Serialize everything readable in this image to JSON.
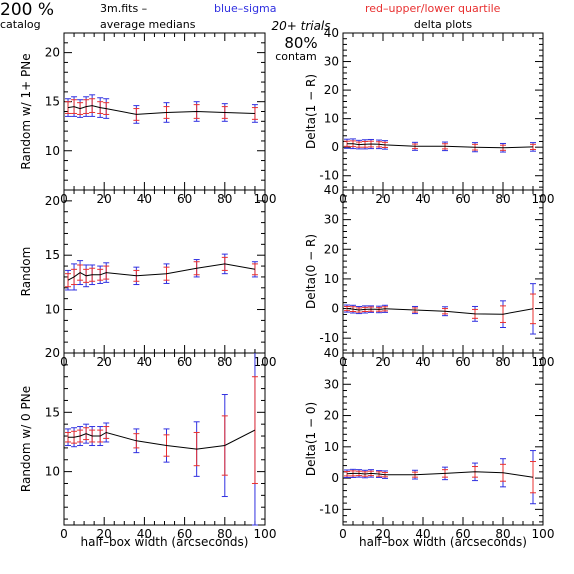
{
  "header": {
    "percent": "200 %",
    "catalog": "catalog",
    "fits": "3m.fits  –",
    "average_medians": "average medians",
    "blue_legend": "blue–sigma",
    "red_legend": "red–upper/lower quartile",
    "trials": "20+ trials",
    "contam_value": "80%",
    "contam_label": "contam",
    "delta_plots": "delta plots",
    "blue_color": "#3030e0",
    "red_color": "#e83030"
  },
  "chart_data": [
    {
      "type": "line",
      "id": "left-1",
      "ylabel": "Random w/ 1+ PNe",
      "xlabel": "",
      "xlim": [
        0,
        100
      ],
      "ylim": [
        6,
        22
      ],
      "xticks": [
        0,
        20,
        40,
        60,
        80,
        100
      ],
      "yticks": [
        10,
        15,
        20
      ],
      "x": [
        2,
        5,
        8,
        11,
        14,
        18,
        21,
        36,
        51,
        66,
        80,
        95
      ],
      "y": [
        14.4,
        14.5,
        14.3,
        14.5,
        14.6,
        14.4,
        14.3,
        13.7,
        13.9,
        14.0,
        13.9,
        13.8
      ],
      "sigma": [
        0.9,
        1.0,
        0.9,
        1.0,
        1.1,
        1.0,
        1.0,
        0.9,
        1.0,
        1.0,
        0.9,
        0.9
      ],
      "quartile": [
        0.6,
        0.7,
        0.6,
        0.7,
        0.7,
        0.6,
        0.6,
        0.6,
        0.6,
        0.7,
        0.6,
        0.6
      ]
    },
    {
      "type": "line",
      "id": "right-1",
      "ylabel": "Delta(1 − R)",
      "xlabel": "",
      "xlim": [
        0,
        100
      ],
      "ylim": [
        -15,
        40
      ],
      "xticks": [
        0,
        20,
        40,
        60,
        80,
        100
      ],
      "yticks": [
        -10,
        0,
        10,
        20,
        30,
        40
      ],
      "x": [
        2,
        5,
        8,
        11,
        14,
        18,
        21,
        36,
        51,
        66,
        80,
        95
      ],
      "y": [
        1.2,
        1.2,
        0.9,
        1.0,
        1.1,
        1.0,
        0.8,
        0.3,
        0.3,
        0.0,
        -0.2,
        0.1
      ],
      "sigma": [
        1.6,
        1.7,
        1.5,
        1.6,
        1.6,
        1.5,
        1.5,
        1.4,
        1.5,
        1.6,
        1.5,
        1.5
      ],
      "quartile": [
        0.9,
        1.0,
        0.9,
        1.0,
        1.0,
        0.9,
        0.9,
        0.8,
        0.9,
        1.0,
        0.9,
        0.9
      ]
    },
    {
      "type": "line",
      "id": "left-2",
      "ylabel": "Random",
      "xlabel": "",
      "xlim": [
        0,
        100
      ],
      "ylim": [
        6,
        21
      ],
      "xticks": [
        0,
        20,
        40,
        60,
        80,
        100
      ],
      "yticks": [
        10,
        15,
        20
      ],
      "x": [
        2,
        5,
        8,
        11,
        14,
        18,
        21,
        36,
        51,
        66,
        80,
        95
      ],
      "y": [
        12.7,
        13.0,
        13.4,
        13.1,
        13.2,
        13.2,
        13.4,
        13.1,
        13.3,
        13.8,
        14.2,
        13.7
      ],
      "sigma": [
        0.9,
        1.2,
        1.1,
        1.0,
        0.9,
        0.8,
        0.9,
        0.8,
        0.9,
        0.8,
        0.9,
        0.7
      ],
      "quartile": [
        0.6,
        0.7,
        0.7,
        0.6,
        0.6,
        0.5,
        0.6,
        0.5,
        0.6,
        0.6,
        0.6,
        0.5
      ]
    },
    {
      "type": "line",
      "id": "right-2",
      "ylabel": "Delta(0 − R)",
      "xlabel": "",
      "xlim": [
        0,
        100
      ],
      "ylim": [
        -15,
        40
      ],
      "xticks": [
        0,
        20,
        40,
        60,
        80,
        100
      ],
      "yticks": [
        -10,
        0,
        10,
        20,
        30,
        40
      ],
      "x": [
        2,
        5,
        8,
        11,
        14,
        18,
        21,
        36,
        51,
        66,
        80,
        95
      ],
      "y": [
        0.0,
        -0.2,
        -0.5,
        -0.3,
        -0.2,
        -0.3,
        -0.1,
        -0.5,
        -0.9,
        -1.8,
        -1.9,
        -0.1
      ],
      "sigma": [
        1.2,
        1.3,
        1.2,
        1.2,
        1.1,
        1.1,
        1.2,
        1.2,
        1.5,
        2.5,
        4.5,
        8.5
      ],
      "quartile": [
        0.7,
        0.8,
        0.7,
        0.7,
        0.7,
        0.6,
        0.7,
        0.7,
        0.9,
        1.5,
        2.8,
        5.0
      ]
    },
    {
      "type": "line",
      "id": "left-3",
      "ylabel": "Random w/ 0 PNe",
      "xlabel": "half–box width (arcseconds)",
      "xlim": [
        0,
        100
      ],
      "ylim": [
        5.5,
        20
      ],
      "xticks": [
        0,
        20,
        40,
        60,
        80,
        100
      ],
      "yticks": [
        10,
        15,
        20
      ],
      "x": [
        2,
        5,
        8,
        11,
        14,
        18,
        21,
        36,
        51,
        66,
        80,
        95
      ],
      "y": [
        12.9,
        12.9,
        13.0,
        13.2,
        13.0,
        13.0,
        13.3,
        12.6,
        12.2,
        11.9,
        12.2,
        13.5
      ],
      "sigma": [
        0.7,
        0.8,
        0.8,
        0.8,
        0.8,
        0.8,
        0.8,
        1.0,
        1.4,
        2.3,
        4.3,
        8.0
      ],
      "quartile": [
        0.4,
        0.5,
        0.5,
        0.5,
        0.5,
        0.5,
        0.5,
        0.6,
        0.9,
        1.4,
        2.5,
        4.5
      ]
    },
    {
      "type": "line",
      "id": "right-3",
      "ylabel": "Delta(1 − 0)",
      "xlabel": "half–box width (arcseconds)",
      "xlim": [
        0,
        100
      ],
      "ylim": [
        -15,
        40
      ],
      "xticks": [
        0,
        20,
        40,
        60,
        80,
        100
      ],
      "yticks": [
        -10,
        0,
        10,
        20,
        30,
        40
      ],
      "x": [
        2,
        5,
        8,
        11,
        14,
        18,
        21,
        36,
        51,
        66,
        80,
        95
      ],
      "y": [
        1.4,
        1.5,
        1.5,
        1.3,
        1.5,
        1.3,
        1.1,
        1.1,
        1.5,
        2.0,
        1.7,
        0.3
      ],
      "sigma": [
        1.2,
        1.3,
        1.2,
        1.2,
        1.2,
        1.1,
        1.2,
        1.4,
        2.0,
        2.8,
        4.5,
        8.5
      ],
      "quartile": [
        0.7,
        0.8,
        0.7,
        0.7,
        0.7,
        0.7,
        0.7,
        0.8,
        1.2,
        1.7,
        2.7,
        5.0
      ]
    }
  ]
}
